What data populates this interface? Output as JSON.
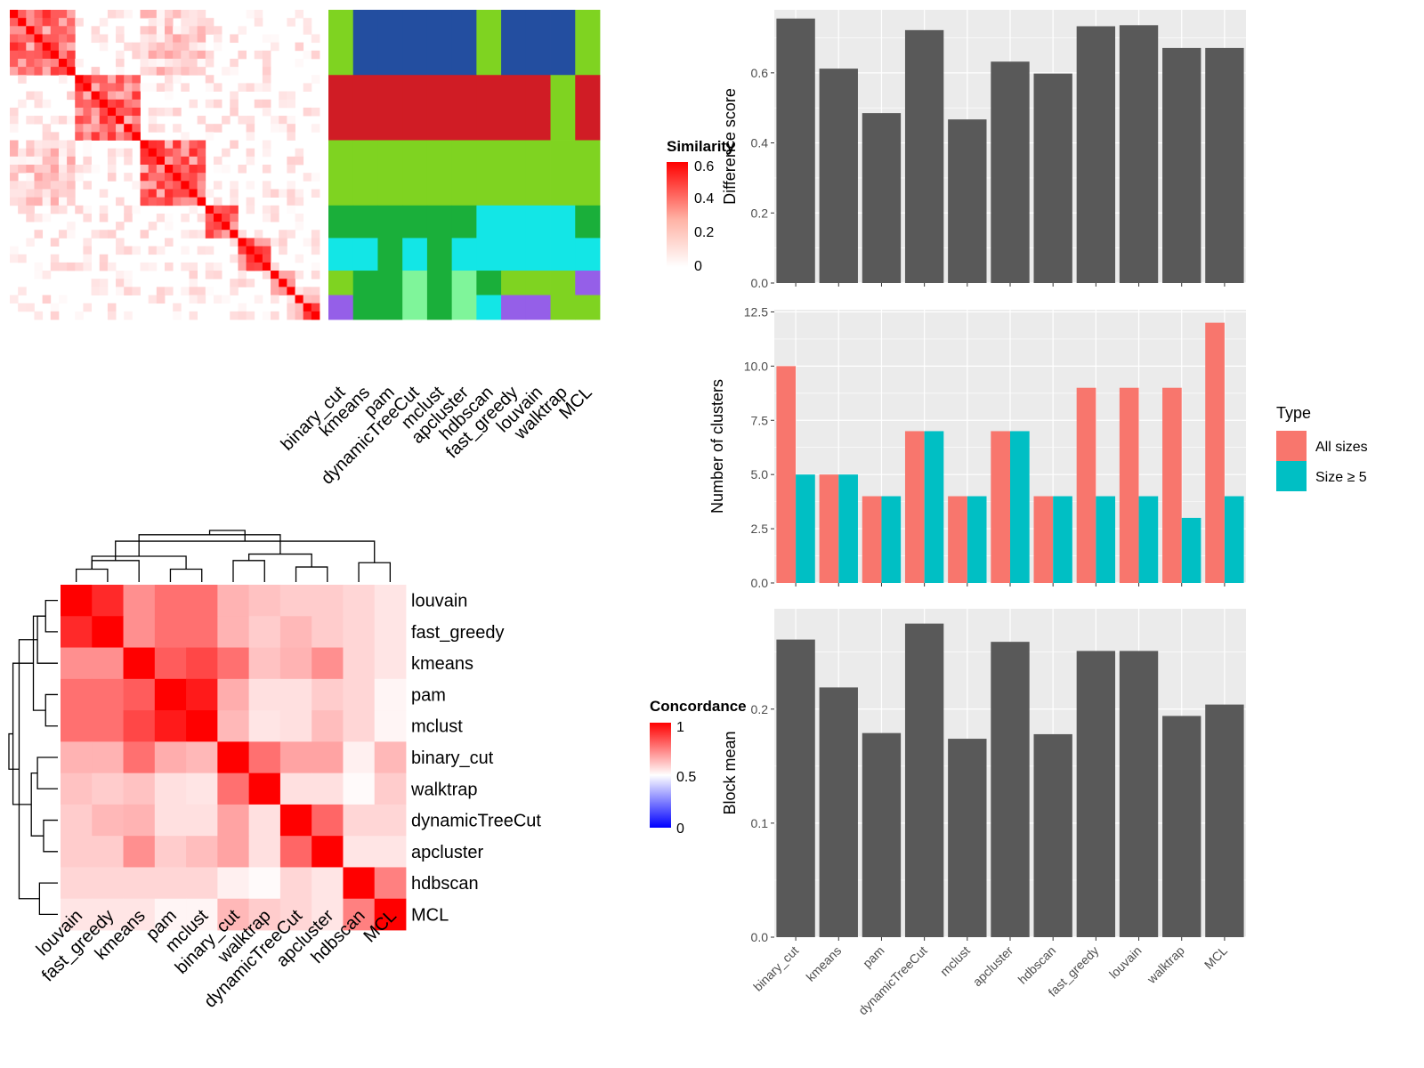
{
  "colors": {
    "sim_low": "#ffffff",
    "sim_high": "#ff0000",
    "concord_low": "#0000ff",
    "concord_mid": "#ffffff",
    "concord_high": "#ff0000",
    "panel_bg": "#ebebeb",
    "grid": "#ffffff",
    "bar": "#595959",
    "all_sizes": "#f8766d",
    "size_ge5": "#00bfc4",
    "cluster_palette": [
      "#7fd321",
      "#234ea0",
      "#d01c25",
      "#1aaf3a",
      "#13e6e6",
      "#7ff59a",
      "#955fe8",
      "#1ce37f",
      "#2430c0"
    ]
  },
  "similarity_legend": {
    "title": "Similarity",
    "ticks": [
      "0",
      "0.2",
      "0.4",
      "0.6"
    ]
  },
  "concordance_legend": {
    "title": "Concordance",
    "ticks": [
      "0",
      "0.5",
      "1"
    ]
  },
  "chart_data": [
    {
      "type": "heatmap",
      "name": "similarity-matrix-with-method-assignments",
      "methods": [
        "binary_cut",
        "kmeans",
        "pam",
        "dynamicTreeCut",
        "mclust",
        "apcluster",
        "hdbscan",
        "fast_greedy",
        "louvain",
        "walktrap",
        "MCL"
      ],
      "legend": {
        "title": "Similarity",
        "range": [
          0,
          0.6
        ]
      },
      "blocks": [
        {
          "size": 8,
          "assign": [
            0,
            1,
            1,
            1,
            1,
            1,
            0,
            1,
            1,
            1,
            0
          ]
        },
        {
          "size": 8,
          "assign": [
            2,
            2,
            2,
            2,
            2,
            2,
            2,
            2,
            2,
            0,
            2
          ]
        },
        {
          "size": 8,
          "assign": [
            0,
            0,
            0,
            0,
            0,
            0,
            0,
            0,
            0,
            0,
            0
          ]
        },
        {
          "size": 4,
          "assign": [
            3,
            3,
            3,
            3,
            3,
            3,
            4,
            4,
            4,
            4,
            3
          ]
        },
        {
          "size": 4,
          "assign": [
            4,
            4,
            3,
            4,
            3,
            4,
            4,
            4,
            4,
            4,
            4
          ]
        },
        {
          "size": 3,
          "assign": [
            0,
            3,
            3,
            5,
            3,
            5,
            3,
            0,
            0,
            0,
            6
          ]
        },
        {
          "size": 3,
          "assign": [
            6,
            3,
            3,
            5,
            3,
            5,
            4,
            6,
            6,
            0,
            0
          ]
        }
      ]
    },
    {
      "type": "heatmap",
      "name": "method-concordance",
      "rows": [
        "louvain",
        "fast_greedy",
        "kmeans",
        "pam",
        "mclust",
        "binary_cut",
        "walktrap",
        "dynamicTreeCut",
        "apcluster",
        "hdbscan",
        "MCL"
      ],
      "cols": [
        "louvain",
        "fast_greedy",
        "kmeans",
        "pam",
        "mclust",
        "binary_cut",
        "walktrap",
        "dynamicTreeCut",
        "apcluster",
        "hdbscan",
        "MCL"
      ],
      "legend": {
        "title": "Concordance",
        "range": [
          0,
          1
        ]
      },
      "values": [
        [
          1.0,
          0.92,
          0.72,
          0.78,
          0.78,
          0.65,
          0.62,
          0.6,
          0.6,
          0.58,
          0.55
        ],
        [
          0.92,
          1.0,
          0.72,
          0.78,
          0.78,
          0.65,
          0.6,
          0.64,
          0.6,
          0.58,
          0.55
        ],
        [
          0.72,
          0.72,
          1.0,
          0.82,
          0.86,
          0.78,
          0.62,
          0.65,
          0.72,
          0.58,
          0.55
        ],
        [
          0.78,
          0.78,
          0.82,
          1.0,
          0.95,
          0.66,
          0.56,
          0.56,
          0.6,
          0.58,
          0.52
        ],
        [
          0.78,
          0.78,
          0.86,
          0.95,
          1.0,
          0.64,
          0.55,
          0.56,
          0.63,
          0.58,
          0.52
        ],
        [
          0.65,
          0.65,
          0.78,
          0.66,
          0.64,
          1.0,
          0.78,
          0.68,
          0.68,
          0.53,
          0.64
        ],
        [
          0.62,
          0.6,
          0.62,
          0.56,
          0.55,
          0.78,
          1.0,
          0.56,
          0.56,
          0.51,
          0.6
        ],
        [
          0.6,
          0.64,
          0.65,
          0.56,
          0.56,
          0.68,
          0.56,
          1.0,
          0.8,
          0.58,
          0.58
        ],
        [
          0.6,
          0.6,
          0.72,
          0.6,
          0.63,
          0.68,
          0.56,
          0.8,
          1.0,
          0.55,
          0.55
        ],
        [
          0.58,
          0.58,
          0.58,
          0.58,
          0.58,
          0.53,
          0.51,
          0.58,
          0.55,
          1.0,
          0.75
        ],
        [
          0.55,
          0.55,
          0.55,
          0.52,
          0.52,
          0.64,
          0.6,
          0.58,
          0.55,
          0.75,
          1.0
        ]
      ]
    },
    {
      "type": "bar",
      "name": "difference-score",
      "categories": [
        "binary_cut",
        "kmeans",
        "pam",
        "dynamicTreeCut",
        "mclust",
        "apcluster",
        "hdbscan",
        "fast_greedy",
        "louvain",
        "walktrap",
        "MCL"
      ],
      "values": [
        0.755,
        0.612,
        0.485,
        0.722,
        0.467,
        0.632,
        0.598,
        0.733,
        0.736,
        0.671,
        0.671
      ],
      "ylabel": "Difference score",
      "ylim": [
        0,
        0.78
      ],
      "yticks": [
        0.0,
        0.2,
        0.4,
        0.6
      ],
      "ytick_labels": [
        "0.0",
        "0.2",
        "0.4",
        "0.6"
      ]
    },
    {
      "type": "bar",
      "name": "number-of-clusters",
      "categories": [
        "binary_cut",
        "kmeans",
        "pam",
        "dynamicTreeCut",
        "mclust",
        "apcluster",
        "hdbscan",
        "fast_greedy",
        "louvain",
        "walktrap",
        "MCL"
      ],
      "series": [
        {
          "name": "All sizes",
          "values": [
            10,
            5,
            4,
            7,
            4,
            7,
            4,
            9,
            9,
            9,
            12
          ]
        },
        {
          "name": "Size ≥ 5",
          "values": [
            5,
            5,
            4,
            7,
            4,
            7,
            4,
            4,
            4,
            3,
            4
          ]
        }
      ],
      "ylabel": "Number of clusters",
      "ylim": [
        0,
        12.6
      ],
      "yticks": [
        0,
        2.5,
        5,
        7.5,
        10,
        12.5
      ],
      "ytick_labels": [
        "0.0",
        "2.5",
        "5.0",
        "7.5",
        "10.0",
        "12.5"
      ],
      "legend": {
        "title": "Type",
        "position": "right"
      }
    },
    {
      "type": "bar",
      "name": "block-mean",
      "categories": [
        "binary_cut",
        "kmeans",
        "pam",
        "dynamicTreeCut",
        "mclust",
        "apcluster",
        "hdbscan",
        "fast_greedy",
        "louvain",
        "walktrap",
        "MCL"
      ],
      "values": [
        0.261,
        0.219,
        0.179,
        0.275,
        0.174,
        0.259,
        0.178,
        0.251,
        0.251,
        0.194,
        0.204
      ],
      "ylabel": "Block mean",
      "ylim": [
        0,
        0.288
      ],
      "yticks": [
        0.0,
        0.1,
        0.2
      ],
      "ytick_labels": [
        "0.0",
        "0.1",
        "0.2"
      ]
    }
  ]
}
